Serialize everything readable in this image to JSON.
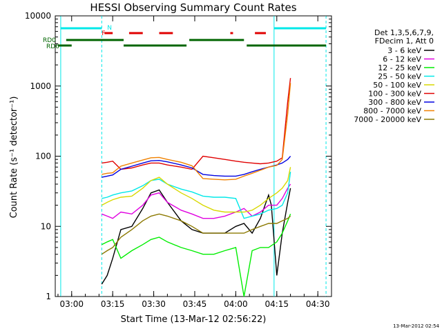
{
  "chart_data": {
    "type": "line",
    "title": "HESSI Observing Summary Count Rates",
    "xlabel": "Start Time (13-Mar-12 02:56:22)",
    "ylabel": "Count Rate (s⁻¹ detector⁻¹)",
    "yscale": "log",
    "ylim": [
      1,
      10000
    ],
    "xlim": [
      "02:54",
      "04:35"
    ],
    "x_ticks": [
      "03:00",
      "03:15",
      "03:30",
      "03:45",
      "04:00",
      "04:15",
      "04:30"
    ],
    "y_ticks": [
      "1",
      "10",
      "100",
      "1000",
      "10000"
    ],
    "grid": false,
    "legend_position": "right",
    "legend_header": [
      "Det 1,3,5,6,7,9,",
      "FDecim 1, Att 0"
    ],
    "footer_timestamp": "13-Mar-2012 02:54",
    "series": [
      {
        "name": "3 - 6 keV",
        "color": "#000000",
        "points": [
          [
            "03:11",
            1.5
          ],
          [
            "03:13",
            2
          ],
          [
            "03:15",
            3.5
          ],
          [
            "03:18",
            9
          ],
          [
            "03:22",
            10
          ],
          [
            "03:26",
            18
          ],
          [
            "03:29",
            30
          ],
          [
            "03:32",
            33
          ],
          [
            "03:35",
            22
          ],
          [
            "03:40",
            12
          ],
          [
            "03:44",
            9
          ],
          [
            "03:48",
            8
          ],
          [
            "03:52",
            8
          ],
          [
            "03:56",
            8
          ],
          [
            "04:00",
            10
          ],
          [
            "04:03",
            11
          ],
          [
            "04:06",
            8
          ],
          [
            "04:09",
            13
          ],
          [
            "04:12",
            28
          ],
          [
            "04:13",
            20
          ],
          [
            "04:15",
            2
          ],
          [
            "04:17",
            8
          ],
          [
            "04:19",
            22
          ],
          [
            "04:20",
            35
          ]
        ]
      },
      {
        "name": "6 - 12 keV",
        "color": "#e000e0",
        "points": [
          [
            "03:11",
            15
          ],
          [
            "03:13",
            14
          ],
          [
            "03:15",
            13
          ],
          [
            "03:18",
            16
          ],
          [
            "03:22",
            15
          ],
          [
            "03:26",
            20
          ],
          [
            "03:29",
            28
          ],
          [
            "03:32",
            30
          ],
          [
            "03:35",
            22
          ],
          [
            "03:40",
            17
          ],
          [
            "03:44",
            15
          ],
          [
            "03:48",
            13
          ],
          [
            "03:52",
            13
          ],
          [
            "03:56",
            14
          ],
          [
            "04:00",
            16
          ],
          [
            "04:03",
            18
          ],
          [
            "04:06",
            14
          ],
          [
            "04:09",
            16
          ],
          [
            "04:12",
            20
          ],
          [
            "04:15",
            20
          ],
          [
            "04:17",
            25
          ],
          [
            "04:19",
            35
          ],
          [
            "04:20",
            40
          ]
        ]
      },
      {
        "name": "12 - 25 keV",
        "color": "#00ee00",
        "points": [
          [
            "03:11",
            5.5
          ],
          [
            "03:13",
            6
          ],
          [
            "03:15",
            6.5
          ],
          [
            "03:18",
            3.5
          ],
          [
            "03:22",
            4.5
          ],
          [
            "03:26",
            5.5
          ],
          [
            "03:29",
            6.5
          ],
          [
            "03:32",
            7
          ],
          [
            "03:35",
            6
          ],
          [
            "03:40",
            5
          ],
          [
            "03:44",
            4.5
          ],
          [
            "03:48",
            4
          ],
          [
            "03:52",
            4
          ],
          [
            "03:56",
            4.5
          ],
          [
            "04:00",
            5
          ],
          [
            "04:03",
            1
          ],
          [
            "04:06",
            4.5
          ],
          [
            "04:09",
            5
          ],
          [
            "04:12",
            5
          ],
          [
            "04:15",
            6
          ],
          [
            "04:17",
            8
          ],
          [
            "04:19",
            12
          ],
          [
            "04:20",
            15
          ]
        ]
      },
      {
        "name": "25 - 50 keV",
        "color": "#00e8e8",
        "points": [
          [
            "03:11",
            25
          ],
          [
            "03:13",
            26
          ],
          [
            "03:15",
            28
          ],
          [
            "03:18",
            30
          ],
          [
            "03:22",
            32
          ],
          [
            "03:26",
            38
          ],
          [
            "03:29",
            45
          ],
          [
            "03:32",
            47
          ],
          [
            "03:35",
            40
          ],
          [
            "03:40",
            34
          ],
          [
            "03:44",
            31
          ],
          [
            "03:48",
            27
          ],
          [
            "03:52",
            26
          ],
          [
            "03:56",
            26
          ],
          [
            "04:00",
            25
          ],
          [
            "04:03",
            13
          ],
          [
            "04:06",
            14
          ],
          [
            "04:09",
            15
          ],
          [
            "04:12",
            17
          ],
          [
            "04:15",
            18
          ],
          [
            "04:17",
            20
          ],
          [
            "04:19",
            30
          ],
          [
            "04:20",
            60
          ]
        ]
      },
      {
        "name": "50 - 100 keV",
        "color": "#d8d800",
        "points": [
          [
            "03:11",
            20
          ],
          [
            "03:13",
            22
          ],
          [
            "03:15",
            24
          ],
          [
            "03:18",
            26
          ],
          [
            "03:22",
            27
          ],
          [
            "03:26",
            35
          ],
          [
            "03:29",
            45
          ],
          [
            "03:32",
            50
          ],
          [
            "03:35",
            40
          ],
          [
            "03:40",
            30
          ],
          [
            "03:44",
            25
          ],
          [
            "03:48",
            20
          ],
          [
            "03:52",
            17
          ],
          [
            "03:56",
            16
          ],
          [
            "04:00",
            16
          ],
          [
            "04:03",
            16
          ],
          [
            "04:06",
            17
          ],
          [
            "04:09",
            20
          ],
          [
            "04:12",
            25
          ],
          [
            "04:15",
            30
          ],
          [
            "04:17",
            35
          ],
          [
            "04:19",
            45
          ],
          [
            "04:20",
            70
          ]
        ]
      },
      {
        "name": "100 - 300 keV",
        "color": "#e00000",
        "points": [
          [
            "03:11",
            80
          ],
          [
            "03:13",
            82
          ],
          [
            "03:15",
            85
          ],
          [
            "03:18",
            65
          ],
          [
            "03:22",
            68
          ],
          [
            "03:26",
            75
          ],
          [
            "03:29",
            80
          ],
          [
            "03:32",
            80
          ],
          [
            "03:35",
            75
          ],
          [
            "03:40",
            70
          ],
          [
            "03:44",
            65
          ],
          [
            "03:48",
            100
          ],
          [
            "03:52",
            95
          ],
          [
            "03:56",
            90
          ],
          [
            "04:00",
            85
          ],
          [
            "04:03",
            82
          ],
          [
            "04:06",
            80
          ],
          [
            "04:09",
            78
          ],
          [
            "04:12",
            80
          ],
          [
            "04:15",
            85
          ],
          [
            "04:17",
            95
          ],
          [
            "04:19",
            600
          ],
          [
            "04:20",
            1300
          ]
        ]
      },
      {
        "name": "300 - 800 keV",
        "color": "#0000e0",
        "points": [
          [
            "03:11",
            50
          ],
          [
            "03:13",
            52
          ],
          [
            "03:15",
            54
          ],
          [
            "03:18",
            65
          ],
          [
            "03:22",
            72
          ],
          [
            "03:26",
            80
          ],
          [
            "03:29",
            86
          ],
          [
            "03:32",
            87
          ],
          [
            "03:35",
            83
          ],
          [
            "03:40",
            75
          ],
          [
            "03:44",
            68
          ],
          [
            "03:48",
            55
          ],
          [
            "03:52",
            53
          ],
          [
            "03:56",
            52
          ],
          [
            "04:00",
            52
          ],
          [
            "04:03",
            55
          ],
          [
            "04:06",
            60
          ],
          [
            "04:09",
            65
          ],
          [
            "04:12",
            70
          ],
          [
            "04:15",
            75
          ],
          [
            "04:17",
            80
          ],
          [
            "04:19",
            90
          ],
          [
            "04:20",
            100
          ]
        ]
      },
      {
        "name": "800 - 7000 keV",
        "color": "#f08000",
        "points": [
          [
            "03:11",
            55
          ],
          [
            "03:13",
            57
          ],
          [
            "03:15",
            58
          ],
          [
            "03:18",
            72
          ],
          [
            "03:22",
            80
          ],
          [
            "03:26",
            88
          ],
          [
            "03:29",
            95
          ],
          [
            "03:32",
            96
          ],
          [
            "03:35",
            90
          ],
          [
            "03:40",
            82
          ],
          [
            "03:44",
            73
          ],
          [
            "03:48",
            48
          ],
          [
            "03:52",
            47
          ],
          [
            "03:56",
            46
          ],
          [
            "04:00",
            47
          ],
          [
            "04:03",
            52
          ],
          [
            "04:06",
            57
          ],
          [
            "04:09",
            63
          ],
          [
            "04:12",
            70
          ],
          [
            "04:15",
            74
          ],
          [
            "04:17",
            90
          ],
          [
            "04:19",
            400
          ],
          [
            "04:20",
            1100
          ]
        ]
      },
      {
        "name": "7000 - 20000 keV",
        "color": "#8b7800",
        "points": [
          [
            "03:11",
            4
          ],
          [
            "03:13",
            4.5
          ],
          [
            "03:15",
            5
          ],
          [
            "03:18",
            7
          ],
          [
            "03:22",
            9
          ],
          [
            "03:26",
            12
          ],
          [
            "03:29",
            14
          ],
          [
            "03:32",
            15
          ],
          [
            "03:35",
            14
          ],
          [
            "03:40",
            12
          ],
          [
            "03:44",
            10
          ],
          [
            "03:48",
            8
          ],
          [
            "03:52",
            8
          ],
          [
            "03:56",
            8
          ],
          [
            "04:00",
            8
          ],
          [
            "04:03",
            8
          ],
          [
            "04:06",
            9
          ],
          [
            "04:09",
            10
          ],
          [
            "04:12",
            11
          ],
          [
            "04:15",
            11
          ],
          [
            "04:17",
            12
          ],
          [
            "04:19",
            13
          ],
          [
            "04:20",
            14
          ]
        ]
      }
    ],
    "status_bars": [
      {
        "label": "N",
        "color": "#00e8e8",
        "segments": [
          [
            "02:56",
            "03:11"
          ],
          [
            "04:14",
            "04:33"
          ]
        ]
      },
      {
        "label": "F",
        "color": "#e00000",
        "segments": [
          [
            "03:12",
            "03:15"
          ],
          [
            "03:21",
            "03:26"
          ],
          [
            "03:32",
            "03:37"
          ],
          [
            "03:58",
            "03:59"
          ],
          [
            "04:07",
            "04:11"
          ]
        ]
      },
      {
        "label": "RD0",
        "color": "#006400",
        "segments": [
          [
            "02:58",
            "03:19"
          ],
          [
            "03:43",
            "04:03"
          ]
        ]
      },
      {
        "label": "RD6",
        "color": "#006400",
        "segments": [
          [
            "02:55",
            "03:00"
          ],
          [
            "03:19",
            "03:42"
          ],
          [
            "04:04",
            "04:33"
          ]
        ]
      }
    ],
    "vertical_markers": {
      "color": "#00e8e8",
      "solid": [
        "02:56",
        "04:14"
      ],
      "dashed": [
        "03:11",
        "04:33"
      ]
    }
  }
}
